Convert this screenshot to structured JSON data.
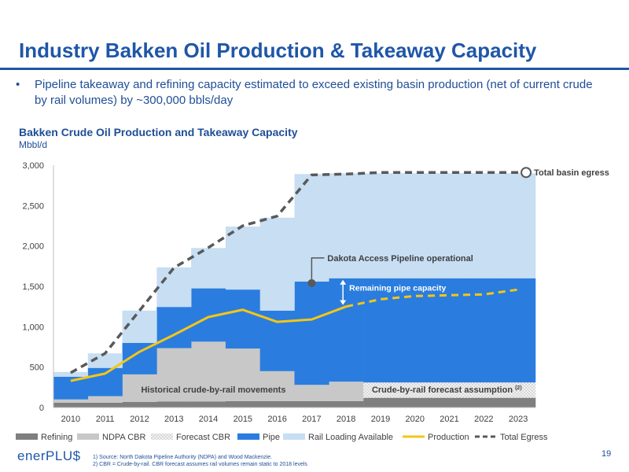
{
  "slide": {
    "title": "Industry Bakken Oil Production & Takeaway Capacity",
    "bullet_marker": "•",
    "bullet": "Pipeline takeaway and refining capacity estimated to exceed existing basin production (net of current crude by rail volumes) by ~300,000 bbls/day",
    "page_number": "19",
    "logo_text": "enerPLU$",
    "footnotes": [
      "1)    Source: North Dakota Pipeline Authority (NDPA) and Wood Mackenzie.",
      "2)    CBR = Crude-by-rail. CBR forecast assumes rail volumes remain static to 2018 levels"
    ],
    "colors": {
      "brand": "#1f56a8"
    }
  },
  "chart_data": {
    "type": "area",
    "title": "Bakken Crude Oil Production and Takeaway Capacity",
    "ylabel": "Mbbl/d",
    "xlabel": "",
    "ylim": [
      0,
      3000
    ],
    "yticks": [
      0,
      500,
      1000,
      1500,
      2000,
      2500,
      3000
    ],
    "ytick_labels": [
      "0",
      "500",
      "1,000",
      "1,500",
      "2,000",
      "2,500",
      "3,000"
    ],
    "x": [
      "2010",
      "2011",
      "2012",
      "2013",
      "2014",
      "2015",
      "2016",
      "2017",
      "2018",
      "2019",
      "2020",
      "2021",
      "2022",
      "2023"
    ],
    "grid": false,
    "legend_position": "bottom",
    "stacked_series": [
      {
        "name": "Refining",
        "color": "#7f7f7f",
        "values": [
          60,
          60,
          70,
          75,
          75,
          80,
          80,
          80,
          80,
          120,
          120,
          120,
          120,
          120
        ]
      },
      {
        "name": "NDPA CBR",
        "color": "#c8c8c8",
        "values": [
          40,
          80,
          340,
          660,
          740,
          650,
          370,
          200,
          240,
          0,
          0,
          0,
          0,
          0
        ]
      },
      {
        "name": "Forecast CBR",
        "color": "#eeeeee",
        "pattern": "dots",
        "values": [
          0,
          0,
          0,
          0,
          0,
          0,
          0,
          0,
          0,
          190,
          190,
          190,
          190,
          190
        ]
      },
      {
        "name": "Pipe",
        "color": "#2a7dde",
        "values": [
          280,
          350,
          390,
          510,
          660,
          730,
          750,
          1280,
          1280,
          1290,
          1290,
          1290,
          1290,
          1290
        ]
      },
      {
        "name": "Rail Loading Available",
        "color": "#c7def3",
        "values": [
          60,
          180,
          400,
          490,
          500,
          780,
          1150,
          1330,
          1300,
          1300,
          1300,
          1300,
          1300,
          1300
        ]
      }
    ],
    "line_series": [
      {
        "name": "Production",
        "color": "#f5c518",
        "values": [
          330,
          420,
          690,
          900,
          1120,
          1210,
          1060,
          1090,
          1250,
          1340,
          1380,
          1390,
          1400,
          1460
        ],
        "forecast_from": "2018"
      },
      {
        "name": "Total Egress",
        "color": "#595959",
        "values": [
          430,
          670,
          1200,
          1730,
          1980,
          2250,
          2370,
          2880,
          2890,
          2910,
          2910,
          2910,
          2910,
          2910
        ]
      }
    ],
    "annotations": {
      "total_basin_egress": "Total basin egress",
      "dakota_access": "Dakota Access Pipeline operational",
      "remaining_pipe": "Remaining pipe capacity",
      "historical_cbr": "Historical crude-by-rail movements",
      "cbr_forecast": "Crude-by-rail forecast assumption",
      "cbr_forecast_note": "(2)"
    }
  }
}
